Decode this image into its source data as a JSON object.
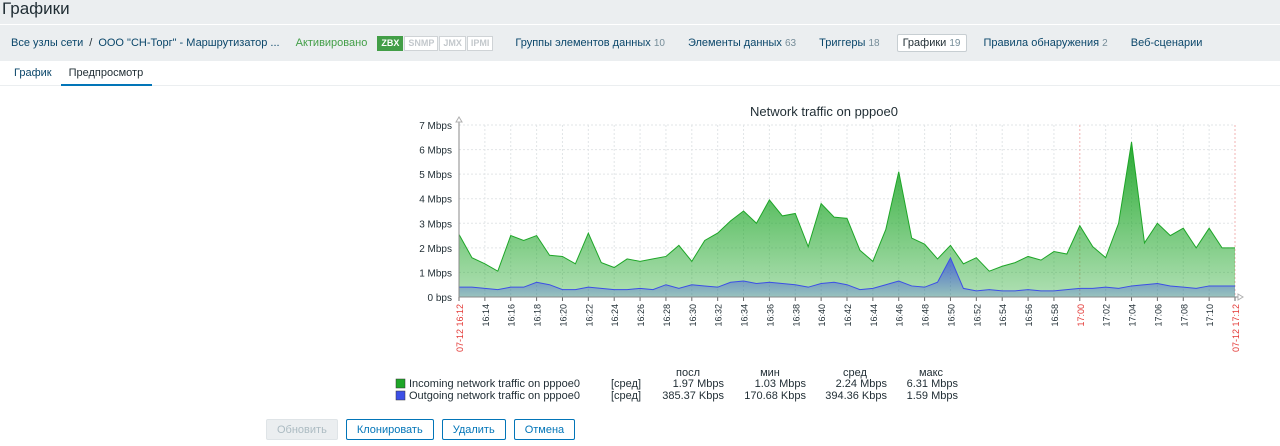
{
  "page": {
    "title": "Графики"
  },
  "host_nav": {
    "all_hosts": "Все узлы сети",
    "separator": "/",
    "host": "ООО \"СН-Торг\" - Маршрутизатор ...",
    "status": "Активировано",
    "availability": [
      {
        "label": "ZBX",
        "active": true
      },
      {
        "label": "SNMP",
        "active": false
      },
      {
        "label": "JMX",
        "active": false
      },
      {
        "label": "IPMI",
        "active": false
      }
    ],
    "tabs": [
      {
        "label": "Группы элементов данных",
        "count": "10",
        "active": false
      },
      {
        "label": "Элементы данных",
        "count": "63",
        "active": false
      },
      {
        "label": "Триггеры",
        "count": "18",
        "active": false
      },
      {
        "label": "Графики",
        "count": "19",
        "active": true
      },
      {
        "label": "Правила обнаружения",
        "count": "2",
        "active": false
      },
      {
        "label": "Веб-сценарии",
        "count": "",
        "active": false
      }
    ]
  },
  "form_tabs": [
    {
      "label": "График",
      "active": false
    },
    {
      "label": "Предпросмотр",
      "active": true
    }
  ],
  "chart_data": {
    "type": "area",
    "title": "Network traffic on pppoe0",
    "y_unit": "Mbps",
    "ylim": [
      0,
      7
    ],
    "y_ticks": [
      "0 bps",
      "1 Mbps",
      "2 Mbps",
      "3 Mbps",
      "4 Mbps",
      "5 Mbps",
      "6 Mbps",
      "7 Mbps"
    ],
    "x_ticks": [
      "07-12 16:12",
      "16:14",
      "16:16",
      "16:18",
      "16:20",
      "16:22",
      "16:24",
      "16:26",
      "16:28",
      "16:30",
      "16:32",
      "16:34",
      "16:36",
      "16:38",
      "16:40",
      "16:42",
      "16:44",
      "16:46",
      "16:48",
      "16:50",
      "16:52",
      "16:54",
      "16:56",
      "16:58",
      "17:00",
      "17:02",
      "17:04",
      "17:06",
      "17:08",
      "17:10",
      "07-12 17:12"
    ],
    "x_ticks_highlight": [
      "07-12 16:12",
      "17:00",
      "07-12 17:12"
    ],
    "grid": true,
    "series": [
      {
        "name": "Incoming network traffic on pppoe0",
        "color": "#1ea628",
        "values": [
          2.55,
          1.6,
          1.35,
          1.05,
          2.5,
          2.3,
          2.5,
          1.7,
          1.65,
          1.35,
          2.6,
          1.4,
          1.2,
          1.55,
          1.45,
          1.55,
          1.65,
          2.1,
          1.45,
          2.3,
          2.6,
          3.1,
          3.5,
          3.0,
          3.95,
          3.3,
          3.4,
          2.05,
          3.8,
          3.25,
          3.2,
          1.9,
          1.45,
          2.75,
          5.1,
          2.4,
          2.15,
          1.55,
          2.1,
          1.35,
          1.6,
          1.05,
          1.25,
          1.4,
          1.65,
          1.5,
          1.85,
          1.75,
          2.9,
          2.05,
          1.6,
          3.0,
          6.31,
          2.2,
          3.0,
          2.5,
          2.8,
          2.0,
          2.8,
          2.0,
          2.0
        ],
        "legend": {
          "func": "[сред]",
          "last": "1.97 Mbps",
          "min": "1.03 Mbps",
          "avg": "2.24 Mbps",
          "max": "6.31 Mbps"
        }
      },
      {
        "name": "Outgoing network traffic on pppoe0",
        "color": "#3c4fe6",
        "values": [
          0.4,
          0.4,
          0.35,
          0.3,
          0.4,
          0.4,
          0.6,
          0.5,
          0.3,
          0.3,
          0.4,
          0.35,
          0.3,
          0.3,
          0.35,
          0.3,
          0.5,
          0.35,
          0.5,
          0.45,
          0.4,
          0.6,
          0.65,
          0.55,
          0.6,
          0.55,
          0.5,
          0.4,
          0.55,
          0.6,
          0.5,
          0.3,
          0.35,
          0.5,
          0.65,
          0.45,
          0.4,
          0.6,
          1.59,
          0.35,
          0.25,
          0.3,
          0.25,
          0.25,
          0.3,
          0.25,
          0.25,
          0.3,
          0.35,
          0.35,
          0.4,
          0.35,
          0.45,
          0.5,
          0.55,
          0.45,
          0.4,
          0.35,
          0.45,
          0.45,
          0.45
        ],
        "legend": {
          "func": "[сред]",
          "last": "385.37 Kbps",
          "min": "170.68 Kbps",
          "avg": "394.36 Kbps",
          "max": "1.59 Mbps"
        }
      }
    ],
    "legend_headers": {
      "last": "посл",
      "min": "мин",
      "avg": "сред",
      "max": "макс"
    }
  },
  "buttons": {
    "update": "Обновить",
    "clone": "Клонировать",
    "delete": "Удалить",
    "cancel": "Отмена"
  }
}
